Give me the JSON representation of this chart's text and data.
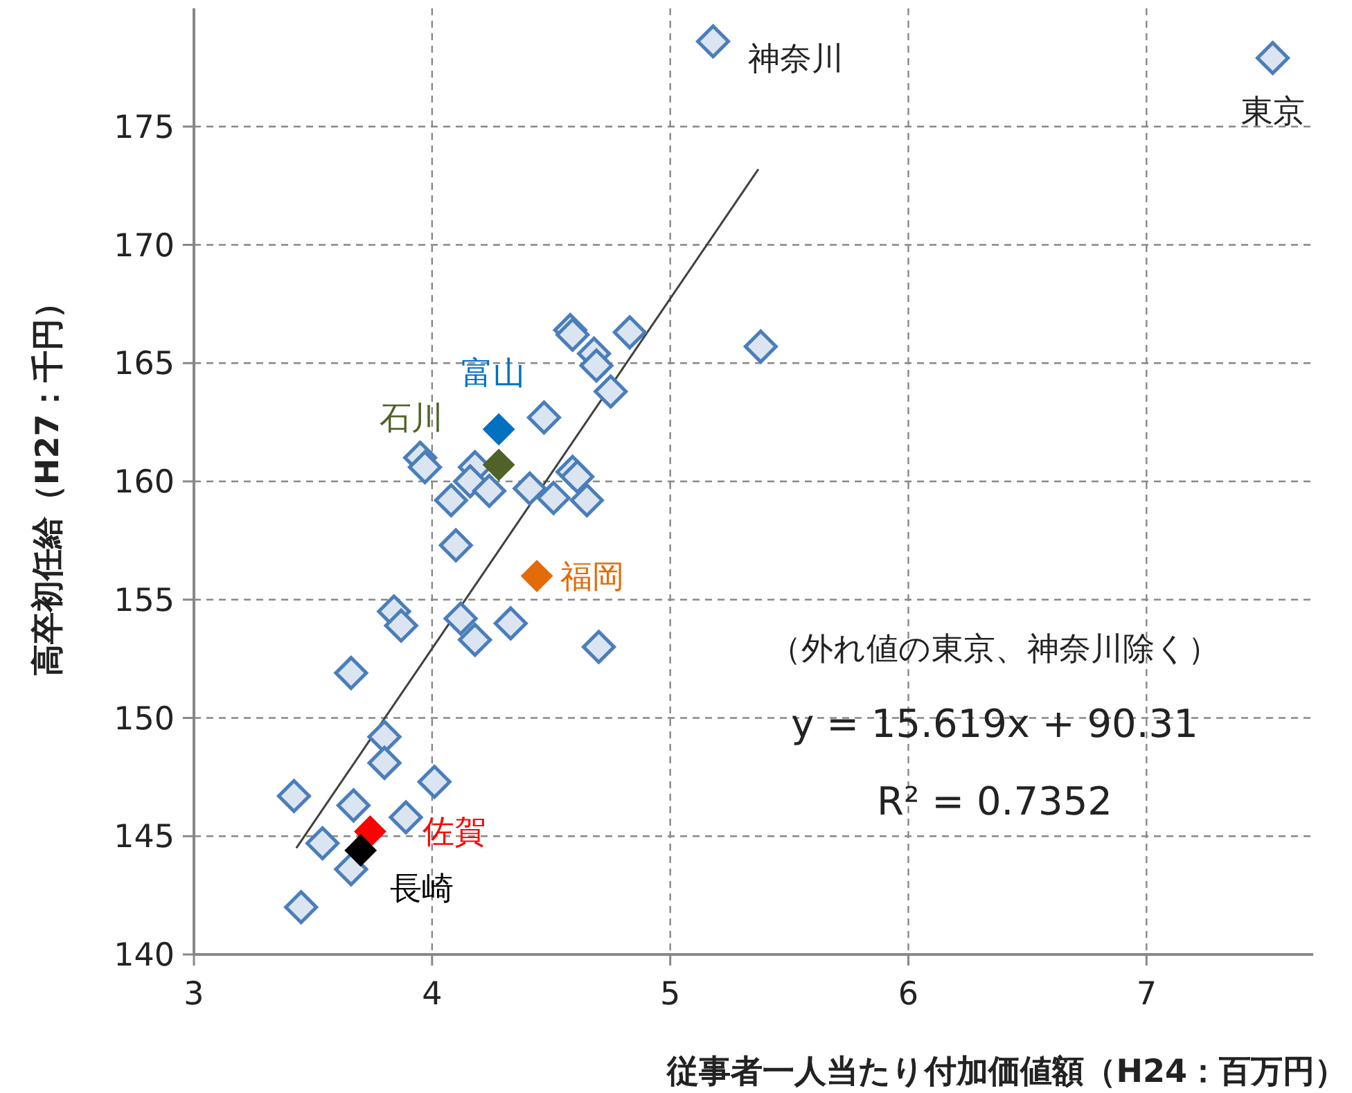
{
  "chart_data": {
    "type": "scatter",
    "xlabel": "従事者一人当たり付加価値額（H24：百万円）",
    "ylabel": "高卒初任給（H27：千円）",
    "xlim": [
      3,
      7.7
    ],
    "ylim": [
      140,
      180
    ],
    "xticks": [
      3,
      4,
      5,
      6,
      7
    ],
    "yticks": [
      140,
      145,
      150,
      155,
      160,
      165,
      170,
      175
    ],
    "grid": true,
    "marker": "diamond",
    "annotations": [
      {
        "text": "神奈川",
        "x": 5.18,
        "y": 178.6
      },
      {
        "text": "東京",
        "x": 7.53,
        "y": 177.9
      },
      "（外れ値の東京、神奈川除く）",
      "y = 15.619x + 90.31",
      "R² = 0.7352"
    ],
    "series": [
      {
        "color": "#4a7ebb",
        "x": [
          5.18,
          7.53,
          5.38,
          4.83,
          4.58,
          4.59,
          4.68,
          4.69,
          4.75,
          4.47,
          3.95,
          3.97,
          4.18,
          4.16,
          4.24,
          4.41,
          4.51,
          4.59,
          4.61,
          4.65,
          4.08,
          4.1,
          3.84,
          3.87,
          4.12,
          4.18,
          4.33,
          4.7,
          3.66,
          3.8,
          3.8,
          4.01,
          3.42,
          3.67,
          3.89,
          3.54,
          3.66,
          3.45
        ],
        "values": [
          178.6,
          177.9,
          165.7,
          166.3,
          166.4,
          166.2,
          165.4,
          164.9,
          163.8,
          162.7,
          161.0,
          160.6,
          160.6,
          160.0,
          159.6,
          159.7,
          159.3,
          160.4,
          160.2,
          159.2,
          159.2,
          157.3,
          154.5,
          153.9,
          154.2,
          153.3,
          154.0,
          153.0,
          151.9,
          149.2,
          148.1,
          147.3,
          146.7,
          146.3,
          145.8,
          144.7,
          143.6,
          142.0
        ]
      },
      {
        "name": "富山",
        "color": "#0070c0",
        "x": [
          4.28
        ],
        "values": [
          162.2
        ]
      },
      {
        "name": "石川",
        "color": "#4f6228",
        "x": [
          4.28
        ],
        "values": [
          160.7
        ]
      },
      {
        "name": "福岡",
        "color": "#e36c09",
        "x": [
          4.44
        ],
        "values": [
          156.0
        ]
      },
      {
        "name": "佐賀",
        "color": "#ff0000",
        "x": [
          3.74
        ],
        "values": [
          145.2
        ]
      },
      {
        "name": "長崎",
        "color": "#000000",
        "x": [
          3.7
        ],
        "values": [
          144.4
        ]
      },
      {
        "type": "line",
        "color": "#404040",
        "marker": "none",
        "x": [
          3.43,
          5.37
        ],
        "values": [
          144.5,
          173.2
        ]
      }
    ]
  }
}
